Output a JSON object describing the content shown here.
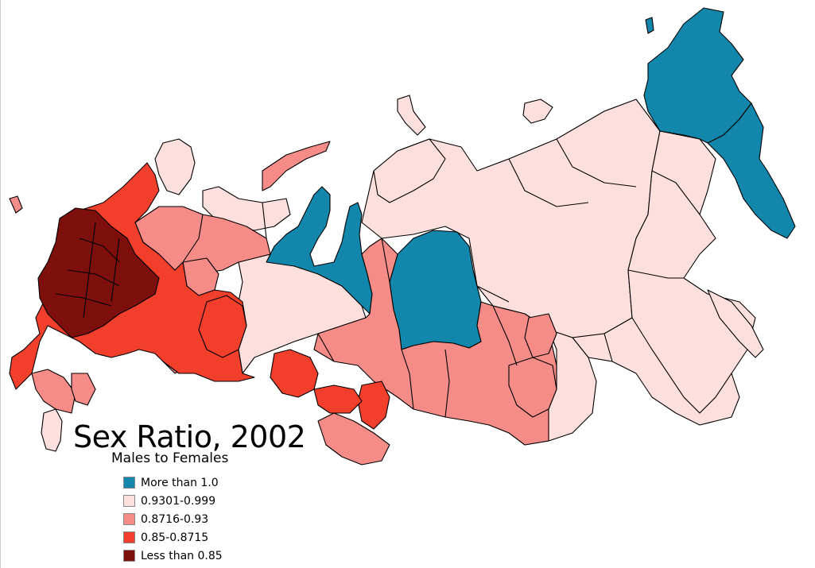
{
  "title": "Sex Ratio, 2002",
  "subtitle": "Males to Females",
  "legend": [
    {
      "label": "More than 1.0",
      "color": "#1386ac"
    },
    {
      "label": "0.9301-0.999",
      "color": "#fde0de"
    },
    {
      "label": "0.8716-0.93",
      "color": "#f58c87"
    },
    {
      "label": "0.85-0.8715",
      "color": "#f23f2c"
    },
    {
      "label": "Less than 0.85",
      "color": "#7d0f0d"
    }
  ]
}
